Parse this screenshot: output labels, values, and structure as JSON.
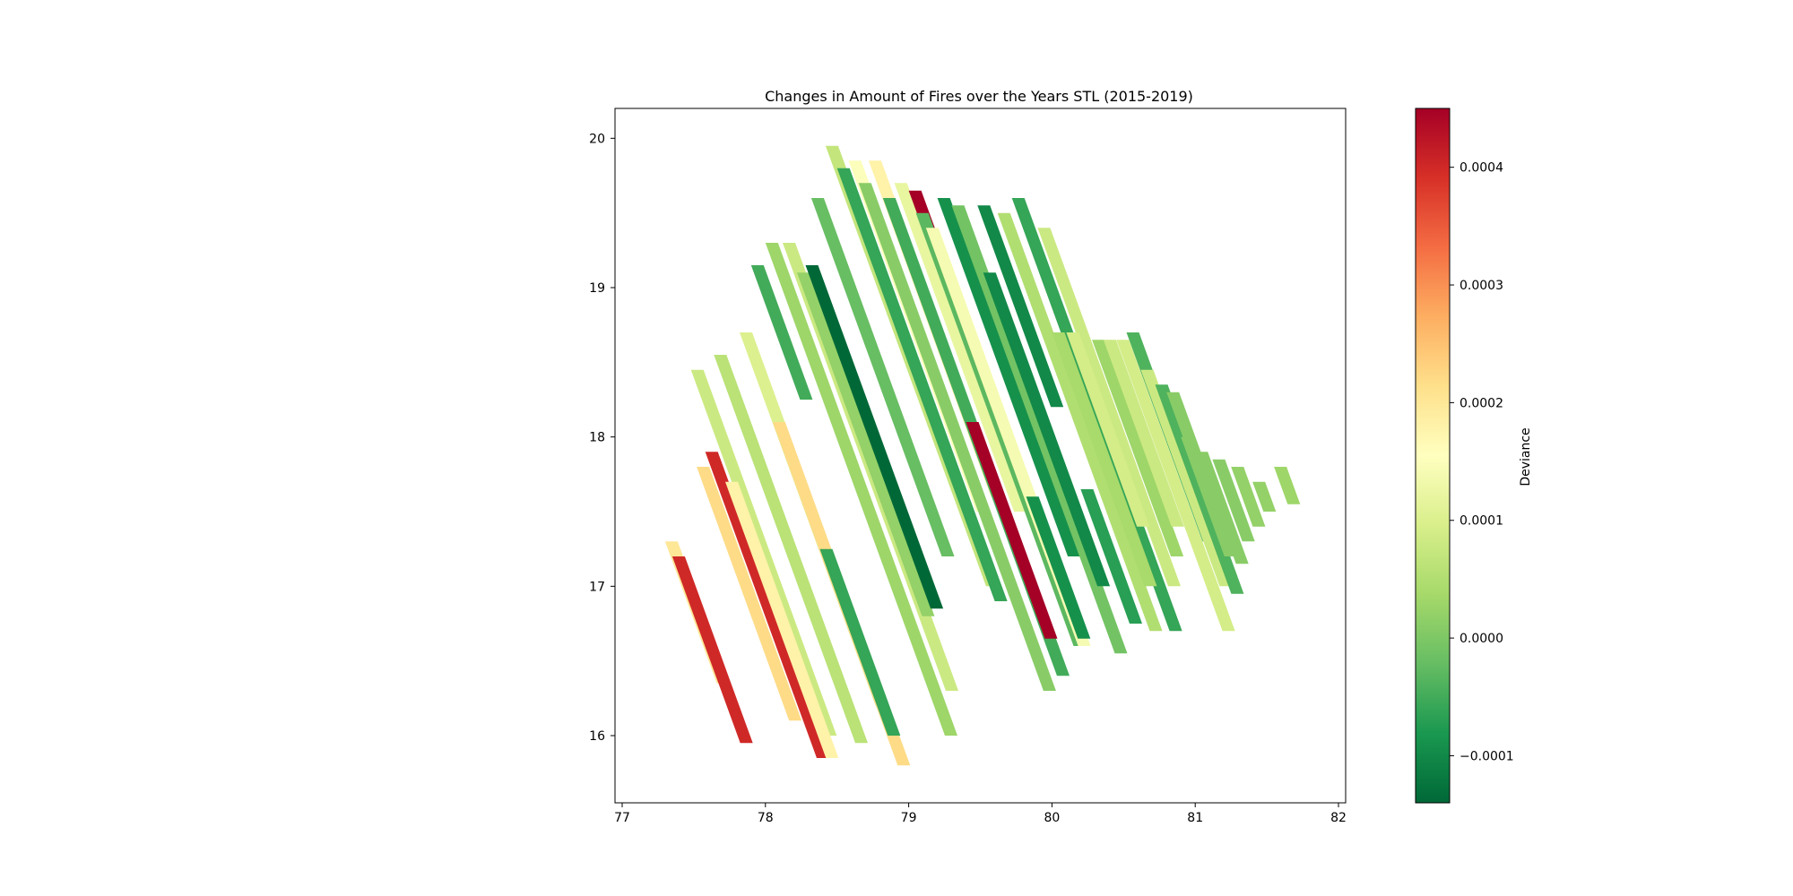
{
  "chart_data": {
    "type": "heatmap",
    "title": "Changes in Amount of Fires over the Years STL (2015-2019)",
    "xlabel": "",
    "ylabel": "",
    "xlim": [
      76.95,
      82.05
    ],
    "ylim": [
      15.55,
      20.2
    ],
    "xticks": [
      77,
      78,
      79,
      80,
      81,
      82
    ],
    "yticks": [
      16,
      17,
      18,
      19,
      20
    ],
    "grid": false,
    "colorbar": {
      "label": "Deviance",
      "colormap": "RdYlGn_r",
      "vmin": -0.00014,
      "vmax": 0.00045,
      "ticks": [
        -0.0001,
        0.0,
        0.0001,
        0.0002,
        0.0003,
        0.0004
      ],
      "tick_labels": [
        "−0.0001",
        "0.0000",
        "0.0001",
        "0.0002",
        "0.0003",
        "0.0004"
      ]
    },
    "strip_angle_deg": 20,
    "strips": [
      {
        "x0": 77.3,
        "y_top": 17.3,
        "y_bot": 16.35,
        "value": 0.0002
      },
      {
        "x0": 77.35,
        "y_top": 17.2,
        "y_bot": 15.95,
        "value": 0.0004
      },
      {
        "x0": 77.48,
        "y_top": 18.45,
        "y_bot": 16.0,
        "value": 8e-05
      },
      {
        "x0": 77.52,
        "y_top": 17.8,
        "y_bot": 16.1,
        "value": 0.00022
      },
      {
        "x0": 77.58,
        "y_top": 17.9,
        "y_bot": 15.85,
        "value": 0.0004
      },
      {
        "x0": 77.64,
        "y_top": 18.55,
        "y_bot": 15.95,
        "value": 6e-05
      },
      {
        "x0": 77.72,
        "y_top": 17.7,
        "y_bot": 15.85,
        "value": 0.00018
      },
      {
        "x0": 77.82,
        "y_top": 18.7,
        "y_bot": 16.2,
        "value": 0.0001
      },
      {
        "x0": 77.9,
        "y_top": 19.15,
        "y_bot": 18.25,
        "value": -5e-05
      },
      {
        "x0": 78.0,
        "y_top": 19.3,
        "y_bot": 16.0,
        "value": 3e-05
      },
      {
        "x0": 78.05,
        "y_top": 18.1,
        "y_bot": 15.8,
        "value": 0.00022
      },
      {
        "x0": 78.12,
        "y_top": 19.3,
        "y_bot": 16.3,
        "value": 8e-05
      },
      {
        "x0": 78.22,
        "y_top": 19.1,
        "y_bot": 16.8,
        "value": 2e-05
      },
      {
        "x0": 78.28,
        "y_top": 19.15,
        "y_bot": 16.85,
        "value": -0.00014
      },
      {
        "x0": 78.32,
        "y_top": 19.6,
        "y_bot": 17.2,
        "value": -2e-05
      },
      {
        "x0": 78.38,
        "y_top": 17.25,
        "y_bot": 16.0,
        "value": -6e-05
      },
      {
        "x0": 78.42,
        "y_top": 19.95,
        "y_bot": 17.0,
        "value": 7e-05
      },
      {
        "x0": 78.5,
        "y_top": 19.8,
        "y_bot": 16.9,
        "value": -6e-05
      },
      {
        "x0": 78.58,
        "y_top": 19.85,
        "y_bot": 17.5,
        "value": 0.00015
      },
      {
        "x0": 78.65,
        "y_top": 19.7,
        "y_bot": 16.3,
        "value": 1e-05
      },
      {
        "x0": 78.72,
        "y_top": 19.85,
        "y_bot": 17.6,
        "value": 0.00018
      },
      {
        "x0": 78.82,
        "y_top": 19.6,
        "y_bot": 16.4,
        "value": -5e-05
      },
      {
        "x0": 78.9,
        "y_top": 19.7,
        "y_bot": 17.5,
        "value": 0.00012
      },
      {
        "x0": 79.0,
        "y_top": 19.65,
        "y_bot": 18.85,
        "value": 0.00045
      },
      {
        "x0": 79.05,
        "y_top": 19.5,
        "y_bot": 16.6,
        "value": -3e-05
      },
      {
        "x0": 79.12,
        "y_top": 19.4,
        "y_bot": 16.6,
        "value": 0.00014
      },
      {
        "x0": 79.2,
        "y_top": 19.6,
        "y_bot": 17.2,
        "value": -9e-05
      },
      {
        "x0": 79.3,
        "y_top": 19.55,
        "y_bot": 16.55,
        "value": -1e-05
      },
      {
        "x0": 79.4,
        "y_top": 18.1,
        "y_bot": 16.65,
        "value": 0.00045
      },
      {
        "x0": 79.48,
        "y_top": 19.55,
        "y_bot": 18.2,
        "value": -0.0001
      },
      {
        "x0": 79.52,
        "y_top": 19.1,
        "y_bot": 17.0,
        "value": -0.0001
      },
      {
        "x0": 79.62,
        "y_top": 19.5,
        "y_bot": 16.7,
        "value": 5e-05
      },
      {
        "x0": 79.72,
        "y_top": 19.6,
        "y_bot": 16.7,
        "value": -6e-05
      },
      {
        "x0": 79.82,
        "y_top": 17.6,
        "y_bot": 16.65,
        "value": -9e-05
      },
      {
        "x0": 79.9,
        "y_top": 19.4,
        "y_bot": 17.0,
        "value": 8e-05
      },
      {
        "x0": 80.0,
        "y_top": 18.7,
        "y_bot": 17.0,
        "value": 4e-05
      },
      {
        "x0": 80.1,
        "y_top": 18.7,
        "y_bot": 17.4,
        "value": 9e-05
      },
      {
        "x0": 80.2,
        "y_top": 17.65,
        "y_bot": 16.75,
        "value": -7e-05
      },
      {
        "x0": 80.28,
        "y_top": 18.65,
        "y_bot": 17.2,
        "value": 3e-05
      },
      {
        "x0": 80.36,
        "y_top": 18.65,
        "y_bot": 17.4,
        "value": 8e-05
      },
      {
        "x0": 80.45,
        "y_top": 18.65,
        "y_bot": 16.7,
        "value": 9e-05
      },
      {
        "x0": 80.52,
        "y_top": 18.7,
        "y_bot": 17.3,
        "value": -4e-05
      },
      {
        "x0": 80.62,
        "y_top": 18.45,
        "y_bot": 17.0,
        "value": 8e-05
      },
      {
        "x0": 80.72,
        "y_top": 18.35,
        "y_bot": 16.95,
        "value": -4e-05
      },
      {
        "x0": 80.8,
        "y_top": 18.3,
        "y_bot": 17.2,
        "value": 1e-05
      },
      {
        "x0": 80.9,
        "y_top": 18.0,
        "y_bot": 17.2,
        "value": 1e-05
      },
      {
        "x0": 81.0,
        "y_top": 17.9,
        "y_bot": 17.15,
        "value": 1e-05
      },
      {
        "x0": 81.12,
        "y_top": 17.85,
        "y_bot": 17.3,
        "value": 1e-05
      },
      {
        "x0": 81.25,
        "y_top": 17.8,
        "y_bot": 17.4,
        "value": 2e-05
      },
      {
        "x0": 81.4,
        "y_top": 17.7,
        "y_bot": 17.5,
        "value": 2e-05
      },
      {
        "x0": 81.55,
        "y_top": 17.8,
        "y_bot": 17.55,
        "value": 3e-05
      }
    ]
  }
}
